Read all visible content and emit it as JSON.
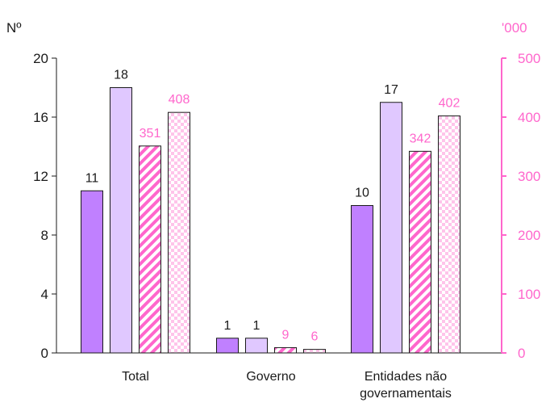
{
  "chart_data": {
    "type": "bar",
    "categories": [
      "Total",
      "Governo",
      "Entidades não governamentais"
    ],
    "left_axis": {
      "label": "Nº",
      "ylim": [
        0,
        20
      ],
      "ticks": [
        "0",
        "4",
        "8",
        "12",
        "16",
        "20"
      ],
      "tick_values": [
        0,
        4,
        8,
        12,
        16,
        20
      ]
    },
    "right_axis": {
      "label": "'000",
      "ylim": [
        0,
        500
      ],
      "ticks": [
        "0",
        "100",
        "200",
        "300",
        "400",
        "500"
      ],
      "tick_values": [
        0,
        100,
        200,
        300,
        400,
        500
      ]
    },
    "series": [
      {
        "axis": "left",
        "values": [
          11,
          1,
          10
        ],
        "labels": [
          "11",
          "1",
          "10"
        ],
        "color": "#c080ff",
        "pattern": "solid"
      },
      {
        "axis": "left",
        "values": [
          18,
          1,
          17
        ],
        "labels": [
          "18",
          "1",
          "17"
        ],
        "color": "#e0c8ff",
        "pattern": "solid"
      },
      {
        "axis": "right",
        "values": [
          351,
          9,
          342
        ],
        "labels": [
          "351",
          "9",
          "342"
        ],
        "color": "#ff66cc",
        "pattern": "diagonal"
      },
      {
        "axis": "right",
        "values": [
          408,
          6,
          402
        ],
        "labels": [
          "408",
          "6",
          "402"
        ],
        "color": "#ff66cc",
        "pattern": "check"
      }
    ],
    "grid": false
  },
  "colors": {
    "left_axis": "#1a1a1a",
    "right_axis": "#ff66cc",
    "bar_outline": "#1a1a1a"
  }
}
